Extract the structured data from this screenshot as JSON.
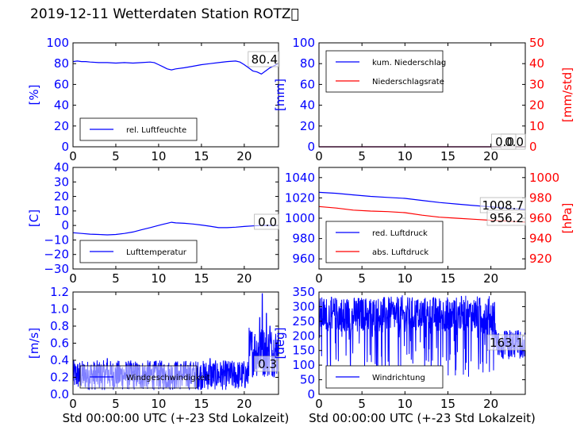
{
  "page": {
    "title": "2019-12-11 Wetterdaten Station ROTZ\u0000"
  },
  "colors": {
    "blue": "#0000ff",
    "red": "#ff0000",
    "black": "#000000"
  },
  "chart_data": [
    {
      "type": "line",
      "panel": "humidity",
      "x": [
        0,
        0.5,
        1,
        1.5,
        2,
        3,
        4,
        5,
        6,
        7,
        8,
        9,
        9.5,
        10,
        10.5,
        11,
        11.5,
        12,
        13,
        14,
        15,
        16,
        17,
        18,
        19,
        19.5,
        20,
        20.5,
        21,
        21.5,
        22,
        22.5,
        23,
        23.5,
        24
      ],
      "series": [
        {
          "name": "rel. Luftfeuchte",
          "axis": "left",
          "values": [
            82,
            82.5,
            82,
            82,
            81.5,
            81,
            81,
            80.5,
            81,
            80.5,
            81,
            81.5,
            81,
            79,
            77,
            75,
            74,
            75,
            76,
            77.5,
            79,
            80,
            81,
            82,
            82.5,
            81.5,
            79,
            76,
            73,
            72,
            70,
            73,
            76,
            78,
            80.4
          ]
        }
      ],
      "last_value": "80.4",
      "ylabel": "[%]",
      "xlim": [
        0,
        24
      ],
      "ylim": [
        0,
        100
      ],
      "yticks": [
        "0",
        "20",
        "40",
        "60",
        "80",
        "100"
      ],
      "xticks": [
        "0",
        "5",
        "10",
        "15",
        "20"
      ],
      "legend_position": "lower-left"
    },
    {
      "type": "line",
      "panel": "precipitation",
      "x": [
        0,
        24
      ],
      "series": [
        {
          "name": "kum. Niederschlag",
          "axis": "left",
          "values": [
            0,
            0
          ]
        },
        {
          "name": "Niederschlagsrate",
          "axis": "right",
          "values": [
            0,
            0
          ]
        }
      ],
      "last_value": "0.0",
      "last_value_right": "0.0",
      "ylabel": "[mm]",
      "ylabel_right": "[mm/std]",
      "xlim": [
        0,
        24
      ],
      "ylim": [
        0,
        100
      ],
      "ylim_right": [
        0,
        50
      ],
      "yticks": [
        "0",
        "20",
        "40",
        "60",
        "80",
        "100"
      ],
      "yticks_right": [
        "0",
        "10",
        "20",
        "30",
        "40",
        "50"
      ],
      "xticks": [
        "0",
        "5",
        "10",
        "15",
        "20"
      ],
      "legend_position": "upper-left"
    },
    {
      "type": "line",
      "panel": "temperature",
      "x": [
        0,
        1,
        2,
        3,
        4,
        5,
        6,
        7,
        8,
        9,
        10,
        10.5,
        11,
        11.5,
        12,
        13,
        14,
        15,
        16,
        17,
        18,
        19,
        20,
        21,
        22,
        23,
        24
      ],
      "series": [
        {
          "name": "Lufttemperatur",
          "axis": "left",
          "values": [
            -5,
            -5.5,
            -6,
            -6.2,
            -6.5,
            -6.2,
            -5.5,
            -4.5,
            -3,
            -1.5,
            0,
            0.8,
            1.5,
            2.2,
            1.8,
            1.5,
            1,
            0.3,
            -0.5,
            -1.5,
            -1.5,
            -1.2,
            -0.7,
            -0.3,
            0,
            0,
            0
          ]
        }
      ],
      "last_value": "0.0",
      "ylabel": "[C]",
      "xlim": [
        0,
        24
      ],
      "ylim": [
        -30,
        40
      ],
      "yticks": [
        "−30",
        "−20",
        "−10",
        "0",
        "10",
        "20",
        "30",
        "40"
      ],
      "xticks": [
        "0",
        "5",
        "10",
        "15",
        "20"
      ],
      "legend_position": "lower-left"
    },
    {
      "type": "line",
      "panel": "pressure",
      "x": [
        0,
        2,
        4,
        6,
        8,
        10,
        12,
        14,
        16,
        18,
        20,
        22,
        24
      ],
      "series": [
        {
          "name": "red. Luftdruck",
          "axis": "left",
          "values": [
            1025.5,
            1024.5,
            1023,
            1021.5,
            1020.5,
            1019.5,
            1017.5,
            1015.5,
            1014,
            1012.5,
            1011.2,
            1009.8,
            1008.7
          ]
        },
        {
          "name": "abs. Luftdruck",
          "axis": "right",
          "values": [
            971.5,
            970,
            968,
            967,
            966.5,
            965.5,
            963,
            961,
            960,
            959,
            958,
            957,
            956.2
          ]
        }
      ],
      "last_value": "1008.7",
      "last_value_right": "956.2",
      "ylabel": "",
      "ylabel_right": "[hPa]",
      "xlim": [
        0,
        24
      ],
      "ylim": [
        950,
        1050
      ],
      "ylim_right": [
        910,
        1010
      ],
      "yticks": [
        "960",
        "980",
        "1000",
        "1020",
        "1040"
      ],
      "yticks_right": [
        "920",
        "940",
        "960",
        "980",
        "1000"
      ],
      "xticks": [
        "0",
        "5",
        "10",
        "15",
        "20"
      ],
      "legend_position": "lower-left"
    },
    {
      "type": "line",
      "panel": "windspeed",
      "x_start": 0,
      "x_end": 24,
      "series": [
        {
          "name": "Windgeschwindigkeit",
          "axis": "left",
          "segments": [
            {
              "from": 0,
              "to": 20.5,
              "low": 0.05,
              "high": 0.4,
              "peaks": [
                [
                  4,
                  0.42
                ],
                [
                  9.5,
                  0.38
                ],
                [
                  12,
                  0.38
                ],
                [
                  16,
                  0.42
                ]
              ]
            },
            {
              "from": 20.5,
              "to": 24,
              "low": 0.2,
              "high": 0.8,
              "peaks": [
                [
                  21.8,
                  0.9
                ],
                [
                  22.1,
                  1.18
                ],
                [
                  22.6,
                  0.95
                ],
                [
                  23,
                  0.8
                ]
              ]
            }
          ]
        }
      ],
      "last_value": "0.3",
      "ylabel": "[m/s]",
      "xlabel": "Std 00:00:00 UTC (+-23 Std Lokalzeit)",
      "xlim": [
        0,
        24
      ],
      "ylim": [
        0,
        1.2
      ],
      "yticks": [
        "0.0",
        "0.2",
        "0.4",
        "0.6",
        "0.8",
        "1.0",
        "1.2"
      ],
      "xticks": [
        "0",
        "5",
        "10",
        "15",
        "20"
      ],
      "legend_position": "lower-left"
    },
    {
      "type": "line",
      "panel": "winddirection",
      "x_start": 0,
      "x_end": 24,
      "series": [
        {
          "name": "Windrichtung",
          "axis": "left",
          "segments": [
            {
              "from": 0,
              "to": 24,
              "low": 60,
              "high": 340,
              "center": 250
            }
          ]
        }
      ],
      "last_value": "163.1",
      "ylabel": "[deg]",
      "xlabel": "Std 00:00:00 UTC (+-23 Std Lokalzeit)",
      "xlim": [
        0,
        24
      ],
      "ylim": [
        0,
        350
      ],
      "yticks": [
        "0",
        "50",
        "100",
        "150",
        "200",
        "250",
        "300",
        "350"
      ],
      "xticks": [
        "0",
        "5",
        "10",
        "15",
        "20"
      ],
      "legend_position": "lower-left"
    }
  ]
}
